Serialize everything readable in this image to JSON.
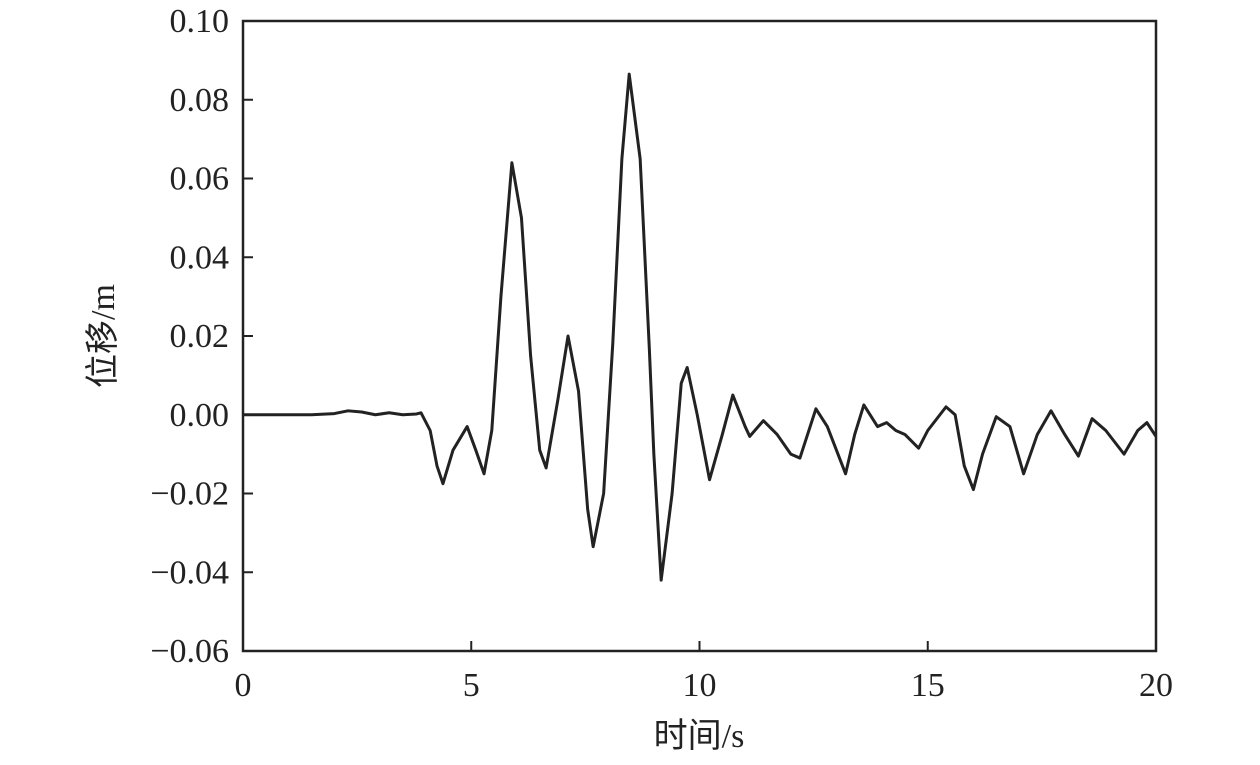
{
  "chart_data": {
    "type": "line",
    "x_label": "时间/s",
    "y_label": "位移/m",
    "x": [
      0,
      1,
      1.5,
      2,
      2.3,
      2.6,
      2.9,
      3.2,
      3.5,
      3.8,
      3.9,
      4.1,
      4.25,
      4.38,
      4.6,
      4.91,
      5.1,
      5.28,
      5.45,
      5.65,
      5.89,
      6.1,
      6.3,
      6.5,
      6.64,
      6.9,
      7.12,
      7.35,
      7.55,
      7.67,
      7.9,
      8.1,
      8.3,
      8.46,
      8.7,
      8.9,
      9.0,
      9.16,
      9.4,
      9.6,
      9.73,
      9.95,
      10.22,
      10.5,
      10.73,
      11.0,
      11.1,
      11.4,
      11.7,
      12.0,
      12.2,
      12.55,
      12.8,
      13.2,
      13.4,
      13.6,
      13.9,
      14.1,
      14.3,
      14.5,
      14.8,
      15.0,
      15.4,
      15.6,
      15.8,
      16.0,
      16.2,
      16.5,
      16.8,
      17.1,
      17.4,
      17.7,
      18.0,
      18.3,
      18.6,
      18.9,
      19.3,
      19.6,
      19.8,
      20
    ],
    "series": [
      {
        "color": "#222222",
        "values": [
          0,
          0,
          0,
          0.0003,
          0.001,
          0.0007,
          0,
          0.0005,
          0,
          0.0002,
          0.0005,
          -0.004,
          -0.013,
          -0.0175,
          -0.009,
          -0.003,
          -0.009,
          -0.015,
          -0.004,
          0.03,
          0.064,
          0.05,
          0.015,
          -0.009,
          -0.0135,
          0.004,
          0.02,
          0.006,
          -0.024,
          -0.0335,
          -0.02,
          0.018,
          0.065,
          0.0865,
          0.065,
          0.017,
          -0.01,
          -0.042,
          -0.02,
          0.008,
          0.012,
          0,
          -0.0165,
          -0.005,
          0.005,
          -0.003,
          -0.0055,
          -0.0015,
          -0.005,
          -0.01,
          -0.011,
          0.0015,
          -0.003,
          -0.015,
          -0.005,
          0.0025,
          -0.003,
          -0.002,
          -0.004,
          -0.005,
          -0.0085,
          -0.004,
          0.002,
          0,
          -0.013,
          -0.019,
          -0.01,
          -0.0005,
          -0.003,
          -0.015,
          -0.005,
          0.001,
          -0.005,
          -0.0105,
          -0.001,
          -0.004,
          -0.01,
          -0.004,
          -0.002,
          -0.0055
        ]
      }
    ],
    "xlim": [
      0,
      20
    ],
    "xticks": [
      0,
      5,
      10,
      15,
      20
    ],
    "ylim": [
      -0.06,
      0.1
    ],
    "yticks": [
      {
        "value": -0.06,
        "label": "−0.06"
      },
      {
        "value": -0.04,
        "label": "−0.04"
      },
      {
        "value": -0.02,
        "label": "−0.02"
      },
      {
        "value": 0,
        "label": "0.00"
      },
      {
        "value": 0.02,
        "label": "0.02"
      },
      {
        "value": 0.04,
        "label": "0.04"
      },
      {
        "value": 0.06,
        "label": "0.06"
      },
      {
        "value": 0.08,
        "label": "0.08"
      },
      {
        "value": 0.1,
        "label": "0.10"
      }
    ]
  }
}
